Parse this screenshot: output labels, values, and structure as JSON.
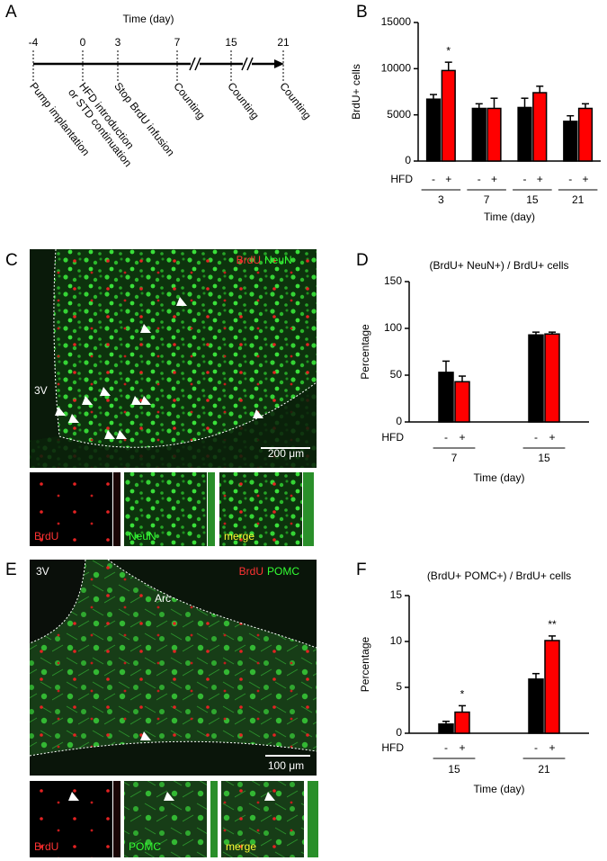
{
  "panel_labels": [
    "A",
    "B",
    "C",
    "D",
    "E",
    "F"
  ],
  "timeline": {
    "title": "Time (day)",
    "days": [
      "-4",
      "0",
      "3",
      "7",
      "15",
      "21"
    ],
    "events": [
      [
        "Pump implantation"
      ],
      [
        "HFD introduction",
        "or STD continuation"
      ],
      [
        "Stop BrdU infusion"
      ],
      [
        "Counting"
      ],
      [
        "Counting"
      ],
      [
        "Counting"
      ]
    ]
  },
  "images": [
    {
      "channels": [
        "BrdU",
        "NeuN"
      ],
      "region_labels": [
        "3V"
      ],
      "scale_bar": "200 μm",
      "insets": [
        "BrdU",
        "NeuN",
        "merge"
      ]
    },
    {
      "channels": [
        "BrdU",
        "POMC"
      ],
      "region_labels": [
        "3V",
        "Arc"
      ],
      "scale_bar": "100 μm",
      "insets": [
        "BrdU",
        "POMC",
        "merge"
      ]
    }
  ],
  "chart_data": [
    {
      "type": "bar",
      "ylabel": "BrdU+ cells",
      "xlabel": "Time (day)",
      "group_label": "HFD",
      "categories": [
        "3",
        "7",
        "15",
        "21"
      ],
      "ylim": [
        0,
        15000
      ],
      "yticks": [
        0,
        5000,
        10000,
        15000
      ],
      "series": [
        {
          "name": "-",
          "color": "#000000",
          "values": [
            6700,
            5700,
            5800,
            4300
          ],
          "errors": [
            500,
            500,
            1000,
            600
          ]
        },
        {
          "name": "+",
          "color": "#ff0000",
          "values": [
            9800,
            5700,
            7400,
            5700
          ],
          "errors": [
            900,
            1100,
            700,
            500
          ],
          "significance": [
            "*",
            null,
            null,
            null
          ]
        }
      ]
    },
    {
      "type": "bar",
      "title": "(BrdU+ NeuN+) / BrdU+ cells",
      "ylabel": "Percentage",
      "xlabel": "Time (day)",
      "group_label": "HFD",
      "categories": [
        "7",
        "15"
      ],
      "ylim": [
        0,
        150
      ],
      "yticks": [
        0,
        50,
        100,
        150
      ],
      "series": [
        {
          "name": "-",
          "color": "#000000",
          "values": [
            53,
            93
          ],
          "errors": [
            12,
            3
          ]
        },
        {
          "name": "+",
          "color": "#ff0000",
          "values": [
            43,
            94
          ],
          "errors": [
            6,
            2
          ]
        }
      ]
    },
    {
      "type": "bar",
      "title": "(BrdU+ POMC+) / BrdU+ cells",
      "ylabel": "Percentage",
      "xlabel": "Time (day)",
      "group_label": "HFD",
      "categories": [
        "15",
        "21"
      ],
      "ylim": [
        0,
        15
      ],
      "yticks": [
        0,
        5,
        10,
        15
      ],
      "series": [
        {
          "name": "-",
          "color": "#000000",
          "values": [
            1.0,
            5.9
          ],
          "errors": [
            0.3,
            0.6
          ]
        },
        {
          "name": "+",
          "color": "#ff0000",
          "values": [
            2.3,
            10.1
          ],
          "errors": [
            0.7,
            0.5
          ],
          "significance": [
            "*",
            "**"
          ]
        }
      ]
    }
  ]
}
